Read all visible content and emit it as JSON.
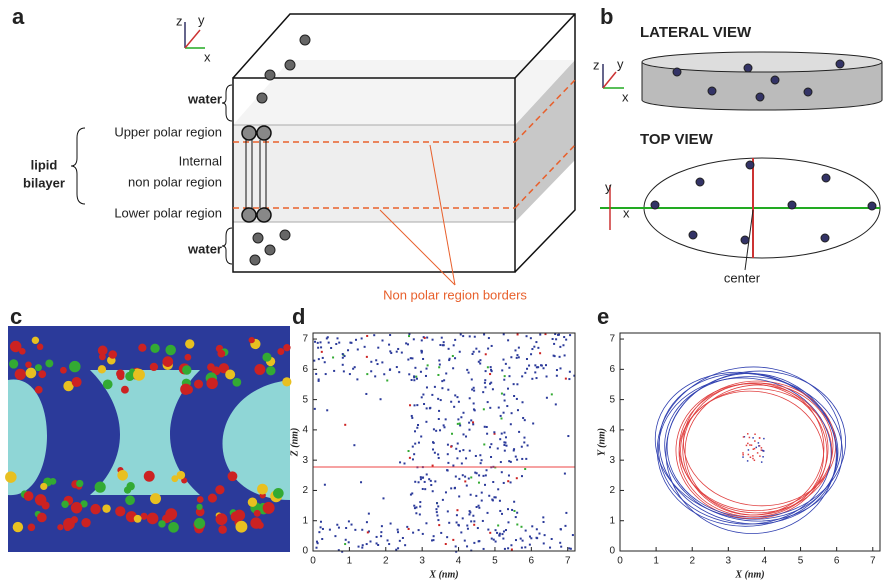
{
  "panel_a": {
    "label": "a",
    "axis_z": "z",
    "axis_y": "y",
    "axis_x": "x",
    "layers": {
      "water_top": "water",
      "upper": "Upper polar region",
      "internal_1": "Internal",
      "internal_2": "non polar region",
      "lower": "Lower polar region",
      "water_bottom": "water"
    },
    "bilayer_1": "lipid",
    "bilayer_2": "bilayer",
    "borders": "Non polar region borders"
  },
  "panel_b": {
    "label": "b",
    "lateral": "LATERAL VIEW",
    "top": "TOP VIEW",
    "center": "center",
    "lat_axis_z": "z",
    "lat_axis_y": "y",
    "lat_axis_x": "x",
    "top_axis_y": "y",
    "top_axis_x": "x"
  },
  "panel_c": {
    "label": "c"
  },
  "panel_d": {
    "label": "d",
    "xlabel": "X (nm)",
    "ylabel": "Z (nm)",
    "xlim": [
      0,
      7.2
    ],
    "ylim": [
      0,
      7.2
    ],
    "xticks": [
      0,
      1,
      2,
      3,
      4,
      5,
      6,
      7
    ],
    "yticks": [
      0,
      1,
      2,
      3,
      4,
      5,
      6,
      7
    ]
  },
  "panel_e": {
    "label": "e",
    "xlabel": "X (nm)",
    "ylabel": "Y (nm)",
    "xlim": [
      0,
      7.2
    ],
    "ylim": [
      0,
      7.2
    ],
    "xticks": [
      0,
      1,
      2,
      3,
      4,
      5,
      6,
      7
    ],
    "yticks": [
      0,
      1,
      2,
      3,
      4,
      5,
      6,
      7
    ]
  }
}
